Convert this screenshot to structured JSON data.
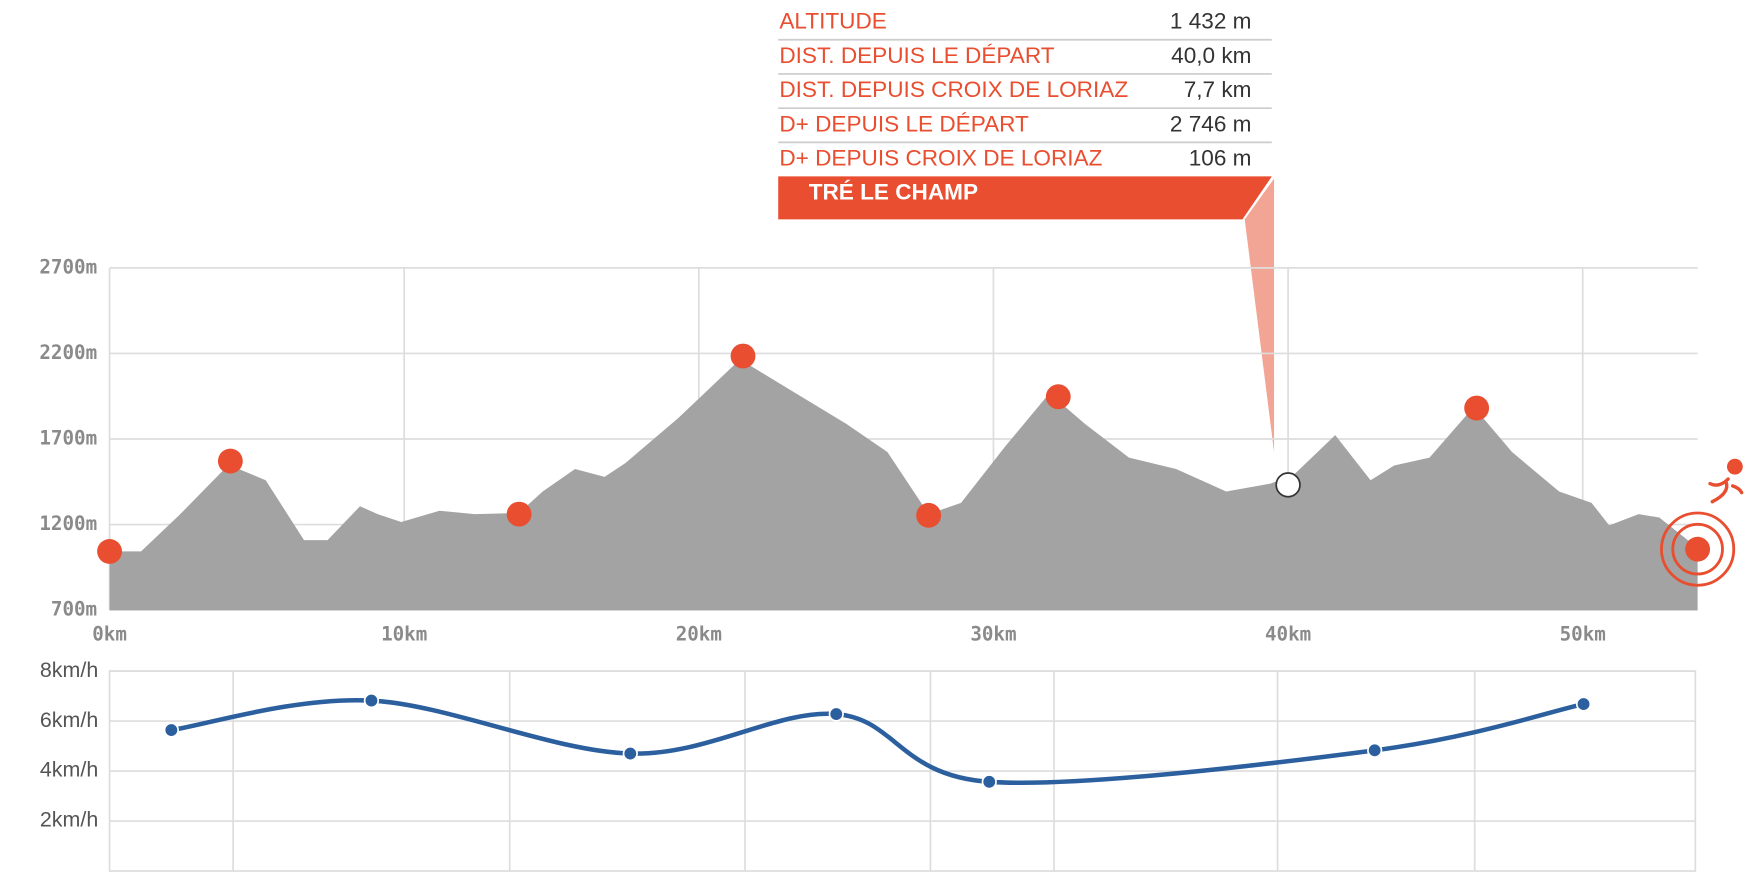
{
  "tooltip": {
    "rows": [
      {
        "label": "ALTITUDE",
        "value": "1 432 m"
      },
      {
        "label": "DIST. DEPUIS LE DÉPART",
        "value": "40,0 km"
      },
      {
        "label": "DIST. DEPUIS CROIX DE LORIAZ",
        "value": "7,7 km"
      },
      {
        "label": "D+ DEPUIS LE DÉPART",
        "value": "2 746 m"
      },
      {
        "label": "D+ DEPUIS CROIX DE LORIAZ",
        "value": "106 m"
      }
    ],
    "title": "TRÉ LE CHAMP"
  },
  "chart_data": [
    {
      "type": "area",
      "color": "#a3a3a3",
      "x": [
        0,
        1.07,
        2.4,
        3.9,
        4.1,
        5.3,
        6.6,
        7.4,
        8.5,
        9.1,
        9.9,
        11.2,
        12.4,
        13.9,
        14.7,
        15.8,
        16.8,
        17.5,
        19.3,
        21.4,
        23.1,
        25.0,
        26.4,
        27.8,
        28.9,
        30.4,
        31.9,
        33.1,
        34.6,
        36.2,
        37.9,
        39.4,
        40.2,
        41.6,
        42.8,
        43.6,
        44.8,
        46.3,
        47.6,
        49.2,
        50.3,
        50.9,
        51.9,
        52.6,
        53.9
      ],
      "values": [
        1043,
        1043,
        1261,
        1525,
        1545,
        1459,
        1109,
        1109,
        1307,
        1261,
        1215,
        1281,
        1261,
        1268,
        1393,
        1525,
        1479,
        1558,
        1822,
        2165,
        1987,
        1789,
        1624,
        1261,
        1327,
        1657,
        1967,
        1789,
        1591,
        1525,
        1393,
        1439,
        1492,
        1723,
        1459,
        1545,
        1591,
        1888,
        1624,
        1393,
        1327,
        1195,
        1261,
        1241,
        1063
      ],
      "checkpoints": {
        "color": "#e84e2f",
        "x": [
          0,
          4.1,
          13.9,
          21.5,
          27.8,
          32.2,
          46.4,
          53.9
        ],
        "values": [
          1043,
          1571,
          1261,
          2185,
          1254,
          1947,
          1881,
          1056
        ]
      },
      "hover": {
        "x": 40.0,
        "value": 1432
      },
      "xlim": [
        0,
        53.9
      ],
      "ylim": [
        700,
        2700
      ],
      "xticks": [
        {
          "value": 0,
          "label": "0km"
        },
        {
          "value": 10,
          "label": "10km"
        },
        {
          "value": 20,
          "label": "20km"
        },
        {
          "value": 30,
          "label": "30km"
        },
        {
          "value": 40,
          "label": "40km"
        },
        {
          "value": 50,
          "label": "50km"
        }
      ],
      "yticks": [
        {
          "value": 700,
          "label": "700m"
        },
        {
          "value": 1200,
          "label": "1200m"
        },
        {
          "value": 1700,
          "label": "1700m"
        },
        {
          "value": 2200,
          "label": "2200m"
        },
        {
          "value": 2700,
          "label": "2700m"
        }
      ],
      "grid": true
    },
    {
      "type": "line",
      "color": "#2c5f9e",
      "x": [
        2.1,
        8.9,
        17.7,
        24.7,
        29.9,
        43.0,
        50.1
      ],
      "values": [
        5.64,
        6.82,
        4.7,
        6.28,
        3.57,
        4.83,
        6.68
      ],
      "xgrid": [
        4.2,
        13.6,
        21.6,
        27.9,
        32.1,
        39.7,
        46.4
      ],
      "xlim": [
        0,
        53.9
      ],
      "ylim": [
        0,
        8
      ],
      "yticks": [
        {
          "value": 2,
          "label": "2km/h"
        },
        {
          "value": 4,
          "label": "4km/h"
        },
        {
          "value": 6,
          "label": "6km/h"
        },
        {
          "value": 8,
          "label": "8km/h"
        }
      ],
      "grid": true
    }
  ]
}
